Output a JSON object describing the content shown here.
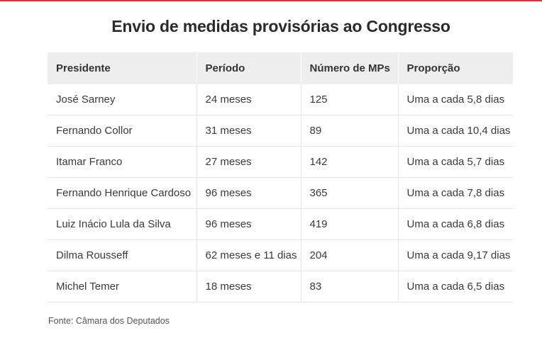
{
  "title": "Envio de medidas provisórias ao Congresso",
  "table": {
    "headers": [
      "Presidente",
      "Período",
      "Número de MPs",
      "Proporção"
    ],
    "rows": [
      [
        "José Sarney",
        "24 meses",
        "125",
        "Uma a cada 5,8 dias"
      ],
      [
        "Fernando Collor",
        "31 meses",
        "89",
        "Uma a cada 10,4 dias"
      ],
      [
        "Itamar Franco",
        "27 meses",
        "142",
        "Uma a cada 5,7 dias"
      ],
      [
        "Fernando Henrique Cardoso",
        "96 meses",
        "365",
        "Uma a cada 7,8 dias"
      ],
      [
        "Luiz Inácio Lula da Silva",
        "96 meses",
        "419",
        "Uma a cada 6,8 dias"
      ],
      [
        "Dilma Rousseff",
        "62 meses e 11 dias",
        "204",
        "Uma a cada 9,17 dias"
      ],
      [
        "Michel Temer",
        "18 meses",
        "83",
        "Uma a cada 6,5 dias"
      ]
    ]
  },
  "source": "Fonte: Câmara dos Deputados",
  "colors": {
    "accent": "#d83a3a",
    "header_bg": "#eeeeee",
    "border": "#e6e6e6"
  }
}
